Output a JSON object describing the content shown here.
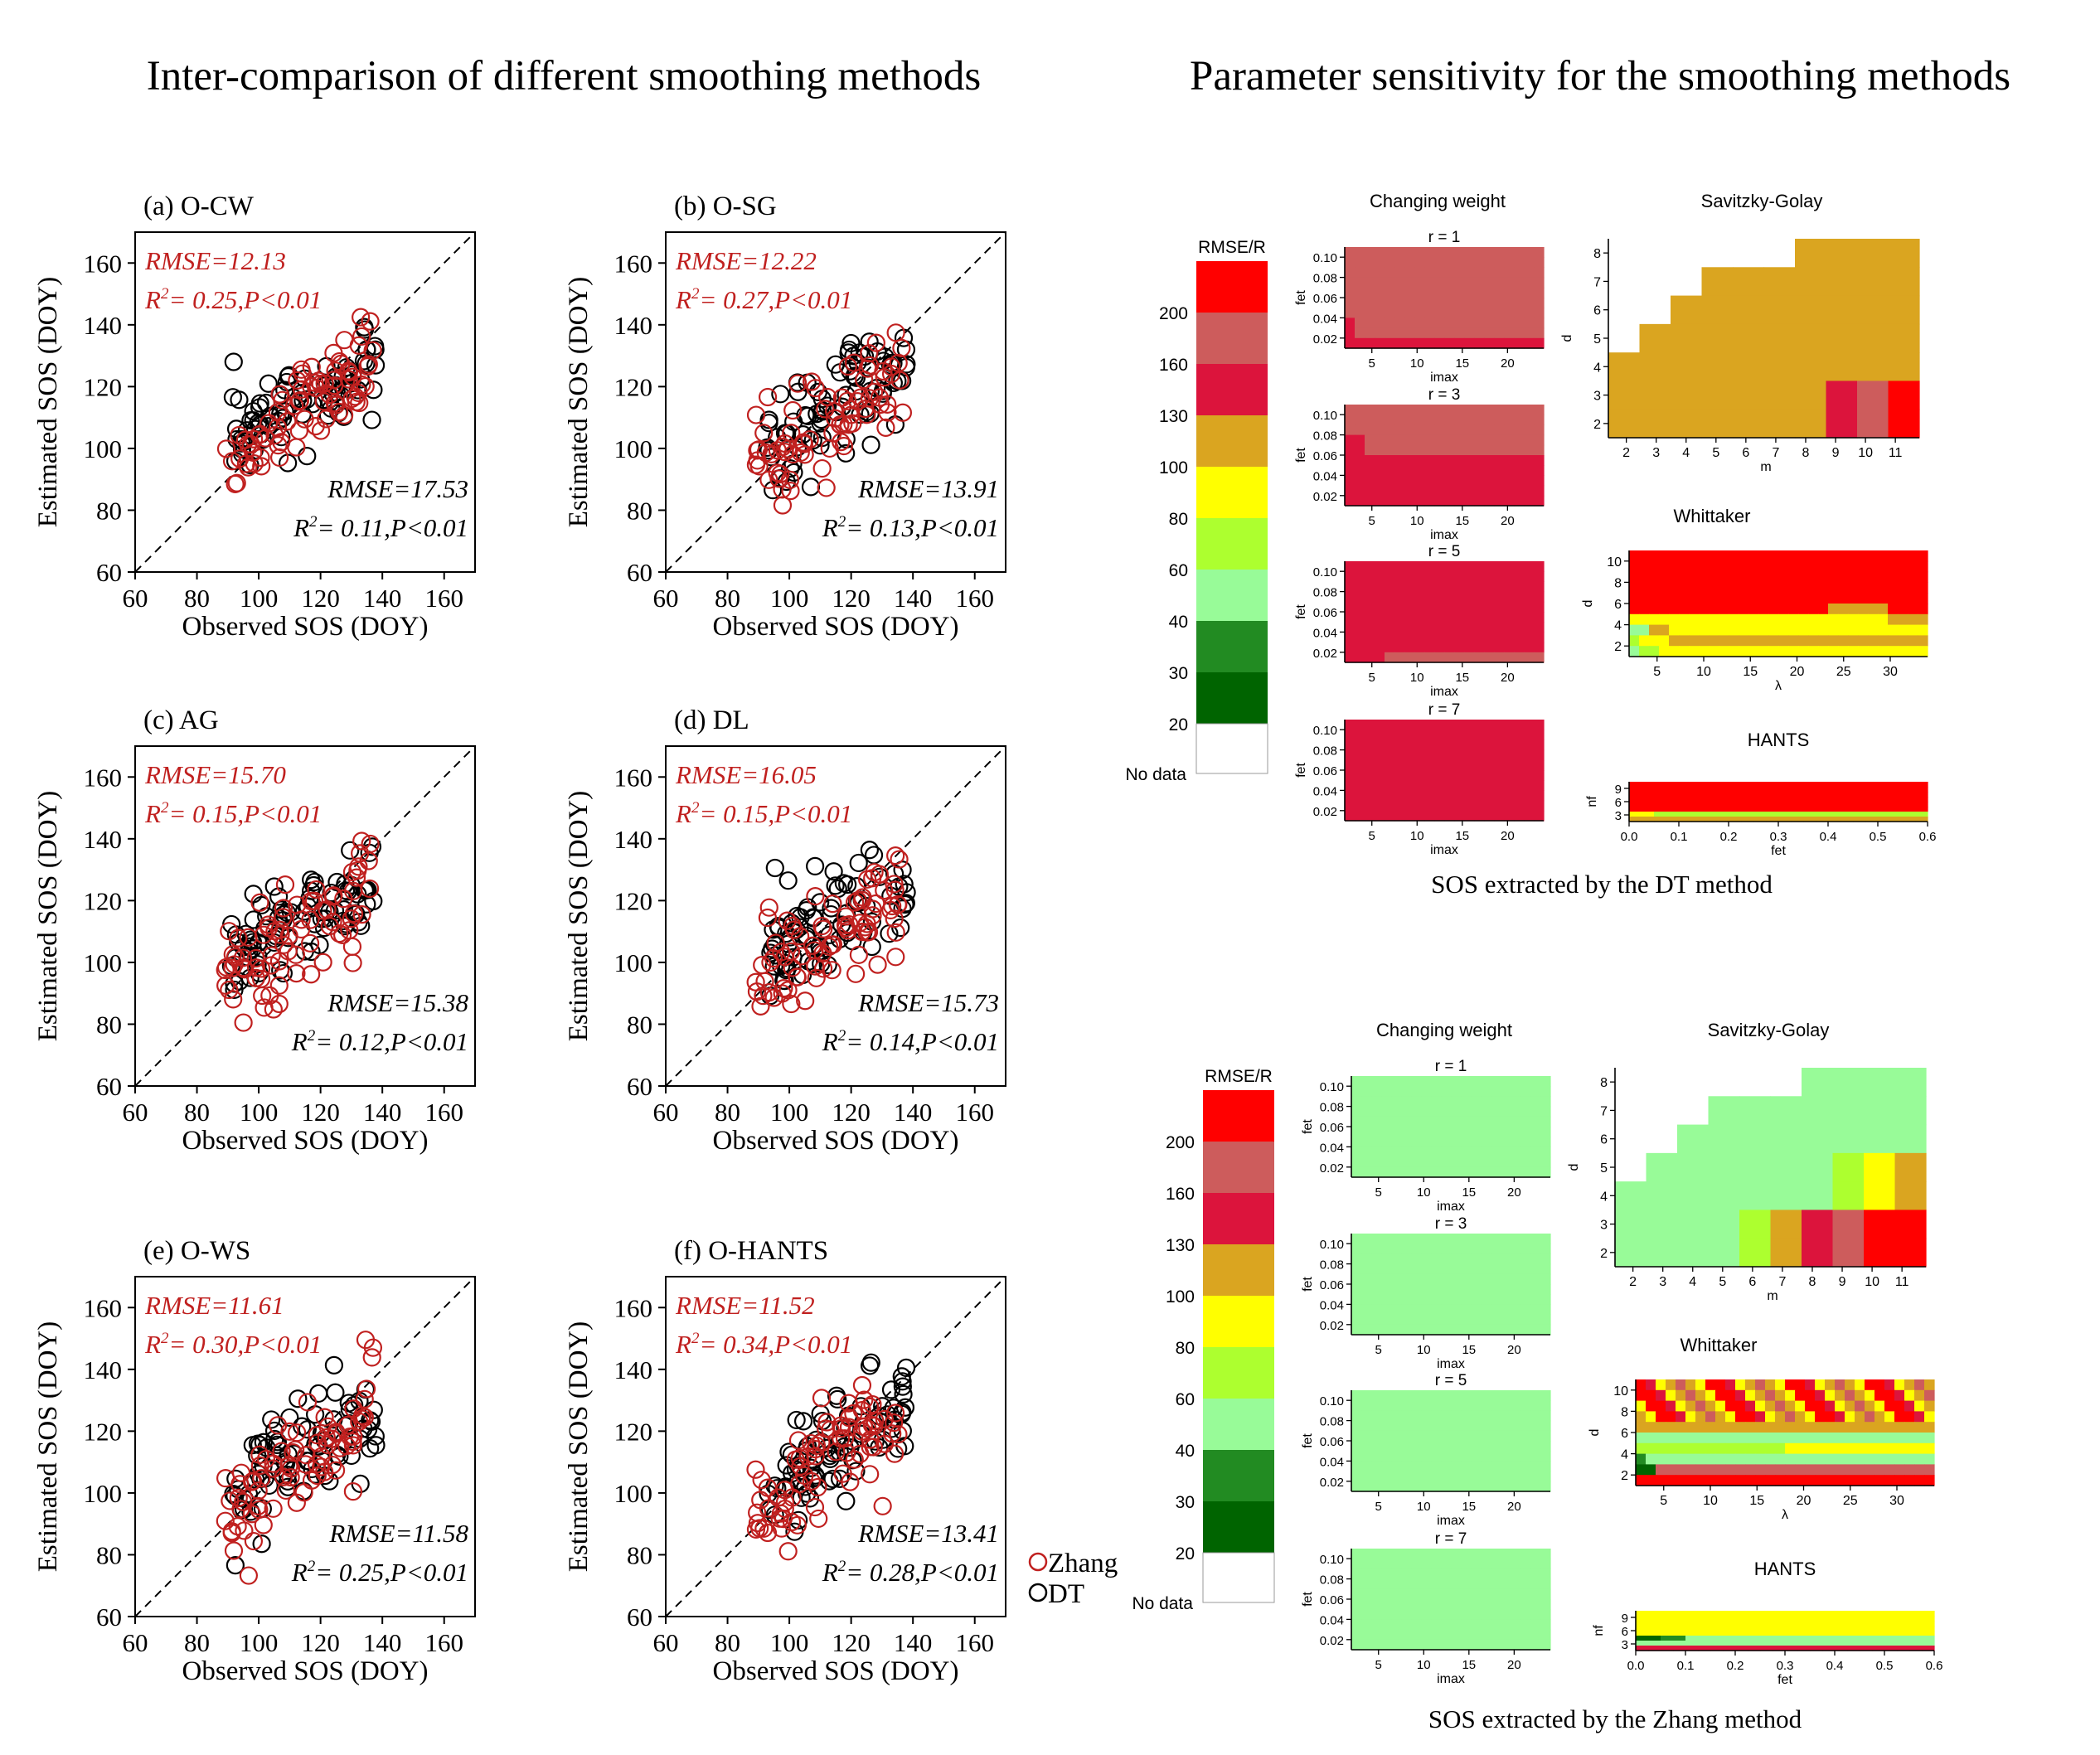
{
  "titles": {
    "left": "Inter-comparison of different smoothing methods",
    "right": "Parameter sensitivity for the smoothing methods"
  },
  "colors": {
    "zhang": "#c0201f",
    "dt": "#000000"
  },
  "legend": {
    "zhang": "Zhang",
    "dt": "DT"
  },
  "chart_data": [
    {
      "type": "scatter",
      "id": "ocw",
      "panel_label": "(a) O-CW",
      "xlabel": "Observed SOS (DOY)",
      "ylabel": "Estimated SOS (DOY)",
      "xlim": [
        60,
        170
      ],
      "ylim": [
        60,
        170
      ],
      "xticks": [
        60,
        80,
        100,
        120,
        140,
        160
      ],
      "yticks": [
        60,
        80,
        100,
        120,
        140,
        160
      ],
      "zhang_rmse": "RMSE=12.13",
      "zhang_stat": "= 0.25,P<0.01",
      "dt_rmse": "RMSE=17.53",
      "dt_stat": "= 0.11,P<0.01"
    },
    {
      "type": "scatter",
      "id": "osg",
      "panel_label": "(b) O-SG",
      "xlabel": "Observed SOS (DOY)",
      "ylabel": "Estimated SOS (DOY)",
      "xlim": [
        60,
        170
      ],
      "ylim": [
        60,
        170
      ],
      "xticks": [
        60,
        80,
        100,
        120,
        140,
        160
      ],
      "yticks": [
        60,
        80,
        100,
        120,
        140,
        160
      ],
      "zhang_rmse": "RMSE=12.22",
      "zhang_stat": "= 0.27,P<0.01",
      "dt_rmse": "RMSE=13.91",
      "dt_stat": "= 0.13,P<0.01"
    },
    {
      "type": "scatter",
      "id": "ag",
      "panel_label": "(c) AG",
      "xlabel": "Observed SOS (DOY)",
      "ylabel": "Estimated SOS (DOY)",
      "xlim": [
        60,
        170
      ],
      "ylim": [
        60,
        170
      ],
      "xticks": [
        60,
        80,
        100,
        120,
        140,
        160
      ],
      "yticks": [
        60,
        80,
        100,
        120,
        140,
        160
      ],
      "zhang_rmse": "RMSE=15.70",
      "zhang_stat": "= 0.15,P<0.01",
      "dt_rmse": "RMSE=15.38",
      "dt_stat": "= 0.12,P<0.01"
    },
    {
      "type": "scatter",
      "id": "dl",
      "panel_label": "(d) DL",
      "xlabel": "Observed SOS (DOY)",
      "ylabel": "Estimated SOS (DOY)",
      "xlim": [
        60,
        170
      ],
      "ylim": [
        60,
        170
      ],
      "xticks": [
        60,
        80,
        100,
        120,
        140,
        160
      ],
      "yticks": [
        60,
        80,
        100,
        120,
        140,
        160
      ],
      "zhang_rmse": "RMSE=16.05",
      "zhang_stat": "= 0.15,P<0.01",
      "dt_rmse": "RMSE=15.73",
      "dt_stat": "= 0.14,P<0.01"
    },
    {
      "type": "scatter",
      "id": "ows",
      "panel_label": "(e) O-WS",
      "xlabel": "Observed SOS (DOY)",
      "ylabel": "Estimated SOS (DOY)",
      "xlim": [
        60,
        170
      ],
      "ylim": [
        60,
        170
      ],
      "xticks": [
        60,
        80,
        100,
        120,
        140,
        160
      ],
      "yticks": [
        60,
        80,
        100,
        120,
        140,
        160
      ],
      "zhang_rmse": "RMSE=11.61",
      "zhang_stat": "= 0.30,P<0.01",
      "dt_rmse": "RMSE=11.58",
      "dt_stat": "= 0.25,P<0.01"
    },
    {
      "type": "scatter",
      "id": "ohants",
      "panel_label": "(f) O-HANTS",
      "xlabel": "Observed SOS (DOY)",
      "ylabel": "Estimated SOS (DOY)",
      "xlim": [
        60,
        170
      ],
      "ylim": [
        60,
        170
      ],
      "xticks": [
        60,
        80,
        100,
        120,
        140,
        160
      ],
      "yticks": [
        60,
        80,
        100,
        120,
        140,
        160
      ],
      "zhang_rmse": "RMSE=11.52",
      "zhang_stat": "= 0.34,P<0.01",
      "dt_rmse": "RMSE=13.41",
      "dt_stat": "= 0.28,P<0.01"
    }
  ],
  "sensitivity": {
    "colorbar": {
      "title": "RMSE/R",
      "labels": [
        "200",
        "160",
        "130",
        "100",
        "80",
        "60",
        "40",
        "30",
        "20"
      ],
      "nodata": "No data",
      "colors": [
        "#ff0000",
        "#cd5c5c",
        "#dc143c",
        "#daa520",
        "#ffff00",
        "#adff2f",
        "#98fb98",
        "#228b22",
        "#006400"
      ]
    },
    "headings": {
      "cw": "Changing weight",
      "sg": "Savitzky-Golay",
      "wh": "Whittaker",
      "hants": "HANTS"
    },
    "cw": {
      "r_labels": [
        "r = 1",
        "r = 3",
        "r = 5",
        "r = 7"
      ],
      "ylabel": "fet",
      "xlabel": "imax",
      "yticks": [
        "0.10",
        "0.08",
        "0.06",
        "0.04",
        "0.02"
      ],
      "xticks": [
        "5",
        "10",
        "15",
        "20"
      ]
    },
    "sg": {
      "ylabel": "d",
      "xlabel": "m",
      "yticks": [
        "8",
        "7",
        "6",
        "5",
        "4",
        "3",
        "2"
      ],
      "xticks": [
        "2",
        "3",
        "4",
        "5",
        "6",
        "7",
        "8",
        "9",
        "10",
        "11"
      ]
    },
    "wh": {
      "ylabel": "d",
      "xlabel": "λ",
      "yticks": [
        "10",
        "8",
        "6",
        "4",
        "2"
      ],
      "xticks": [
        "5",
        "10",
        "15",
        "20",
        "25",
        "30"
      ]
    },
    "hants": {
      "ylabel": "nf",
      "xlabel": "fet",
      "yticks": [
        "9",
        "6",
        "3"
      ],
      "xticks": [
        "0.0",
        "0.1",
        "0.2",
        "0.3",
        "0.4",
        "0.5",
        "0.6"
      ]
    },
    "blocks": [
      {
        "caption": "SOS extracted by the DT method",
        "cw_main": [
          "#cd5c5c",
          "#cd5c5c",
          "#dc143c",
          "#dc143c"
        ],
        "sg_main": "#daa520",
        "hants_main": "#ff0000",
        "hants_bottom": "#daa520"
      },
      {
        "caption": "SOS extracted by the Zhang method",
        "cw_main": [
          "#98fb98",
          "#98fb98",
          "#98fb98",
          "#98fb98"
        ],
        "sg_main": "#98fb98",
        "hants_main": "#ffff00",
        "hants_bottom": "#dc143c"
      }
    ]
  }
}
